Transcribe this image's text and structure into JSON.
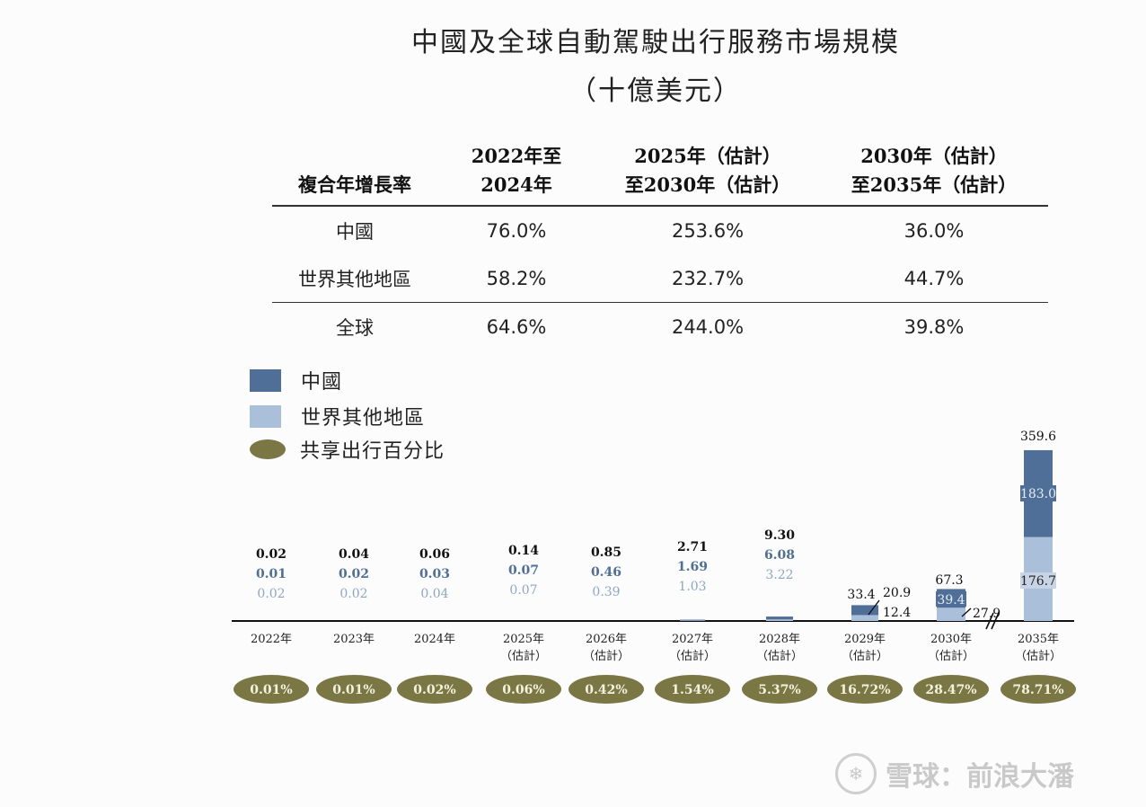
{
  "title_line1": "中國及全球自動駕駛出行服務市場規模",
  "title_line2": "（十億美元）",
  "cagr_table": {
    "header": {
      "label": "複合年增長率",
      "p1_line1": "2022年至",
      "p1_line2": "2024年",
      "p2_line1": "2025年（估計）",
      "p2_line2": "至2030年（估計）",
      "p3_line1": "2030年（估計）",
      "p3_line2": "至2035年（估計）"
    },
    "rows": [
      {
        "region": "中國",
        "p1": "76.0%",
        "p2": "253.6%",
        "p3": "36.0%"
      },
      {
        "region": "世界其他地區",
        "p1": "58.2%",
        "p2": "232.7%",
        "p3": "44.7%"
      },
      {
        "region": "全球",
        "p1": "64.6%",
        "p2": "244.0%",
        "p3": "39.8%"
      }
    ]
  },
  "legend": {
    "china": "中國",
    "rest_of_world": "世界其他地區",
    "shared_pct": "共享出行百分比"
  },
  "colors": {
    "china": "#4f6f99",
    "rest_of_world": "#a9bfda",
    "oval": "#7a7745",
    "oval_text": "#f4f1dc"
  },
  "chart_data": {
    "type": "bar",
    "stacked": true,
    "categories": [
      "2022年",
      "2023年",
      "2024年",
      "2025年（估計）",
      "2026年（估計）",
      "2027年（估計）",
      "2028年（估計）",
      "2029年（估計）",
      "2030年（估計）",
      "2035年（估計）"
    ],
    "category_labels": [
      [
        "2022年",
        ""
      ],
      [
        "2023年",
        ""
      ],
      [
        "2024年",
        ""
      ],
      [
        "2025年",
        "（估計）"
      ],
      [
        "2026年",
        "（估計）"
      ],
      [
        "2027年",
        "（估計）"
      ],
      [
        "2028年",
        "（估計）"
      ],
      [
        "2029年",
        "（估計）"
      ],
      [
        "2030年",
        "（估計）"
      ],
      [
        "2035年",
        "（估計）"
      ]
    ],
    "series": [
      {
        "name": "中國",
        "values": [
          0.01,
          0.02,
          0.03,
          0.07,
          0.46,
          1.69,
          6.08,
          20.9,
          39.4,
          183.0
        ],
        "labels": [
          "0.01",
          "0.02",
          "0.03",
          "0.07",
          "0.46",
          "1.69",
          "6.08",
          "20.9",
          "39.4",
          "183.0"
        ]
      },
      {
        "name": "世界其他地區",
        "values": [
          0.02,
          0.02,
          0.04,
          0.07,
          0.39,
          1.03,
          3.22,
          12.4,
          27.9,
          176.7
        ],
        "labels": [
          "0.02",
          "0.02",
          "0.04",
          "0.07",
          "0.39",
          "1.03",
          "3.22",
          "12.4",
          "27.9",
          "176.7"
        ]
      }
    ],
    "totals": [
      0.02,
      0.04,
      0.06,
      0.14,
      0.85,
      2.71,
      9.3,
      33.4,
      67.3,
      359.6
    ],
    "total_labels": [
      "0.02",
      "0.04",
      "0.06",
      "0.14",
      "0.85",
      "2.71",
      "9.30",
      "33.4",
      "67.3",
      "359.6"
    ],
    "shared_ride_pct": [
      "0.01%",
      "0.01%",
      "0.02%",
      "0.06%",
      "0.42%",
      "1.54%",
      "5.37%",
      "16.72%",
      "28.47%",
      "78.71%"
    ],
    "axis_break_between": [
      "2030年（估計）",
      "2035年（估計）"
    ]
  },
  "watermark": "雪球：前浪大潘"
}
